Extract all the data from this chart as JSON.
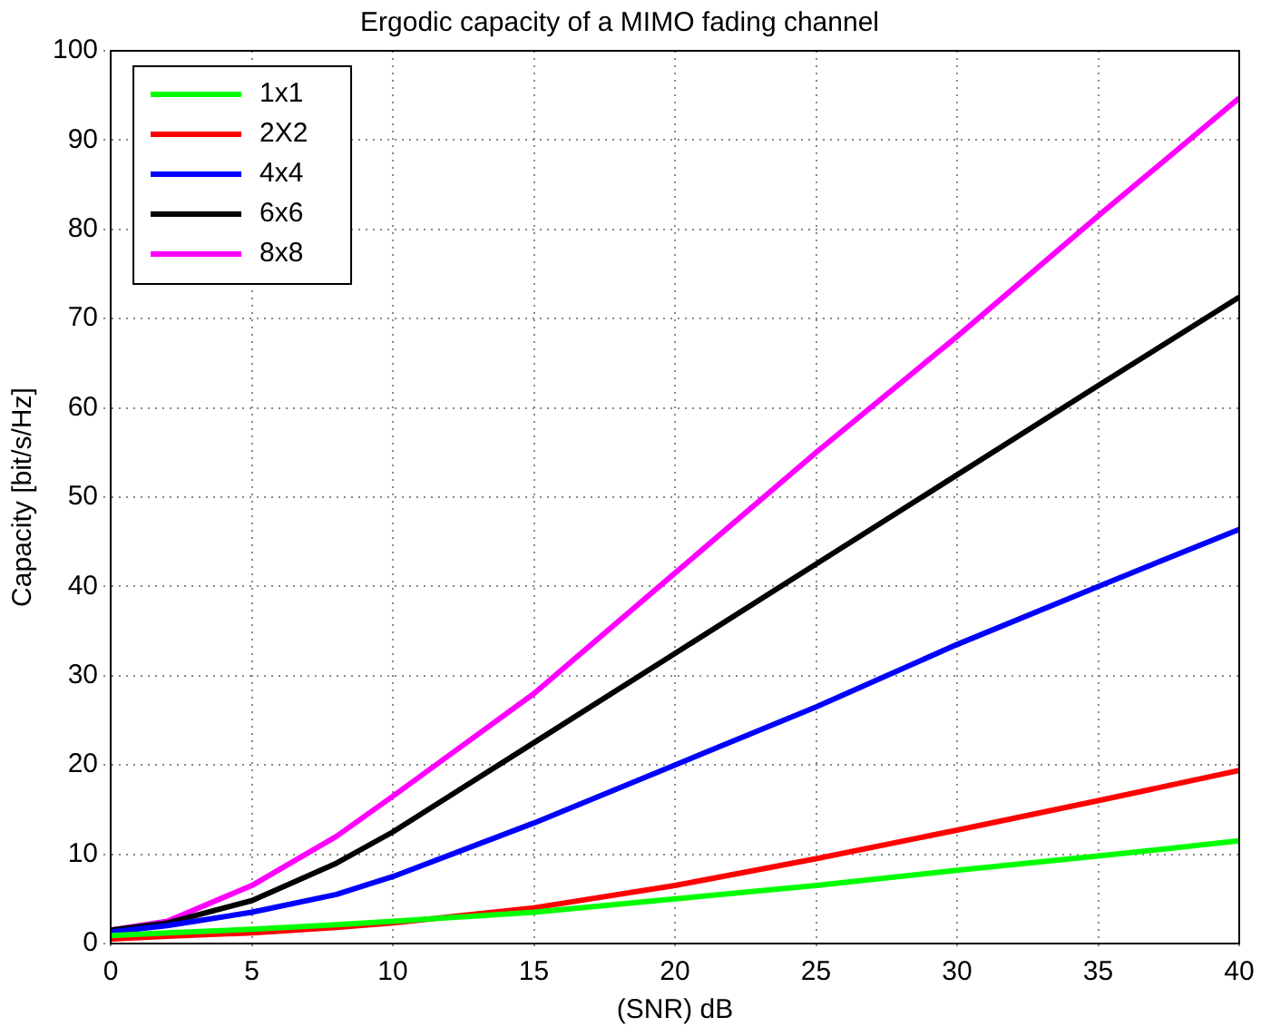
{
  "chart_data": {
    "type": "line",
    "title": "Ergodic capacity of a MIMO fading channel",
    "xlabel": "(SNR) dB",
    "ylabel": "Capacity [bit/s/Hz]",
    "x": [
      0,
      2,
      5,
      8,
      10,
      15,
      20,
      25,
      30,
      35,
      40
    ],
    "series": [
      {
        "name": "1x1",
        "color": "#00ff00",
        "values": [
          0.9,
          1.2,
          1.6,
          2.1,
          2.5,
          3.5,
          5,
          6.5,
          8.2,
          9.8,
          11.5
        ]
      },
      {
        "name": "2X2",
        "color": "#ff0000",
        "values": [
          0.5,
          0.8,
          1.2,
          1.8,
          2.3,
          4,
          6.5,
          9.5,
          12.7,
          16,
          19.4
        ]
      },
      {
        "name": "4x4",
        "color": "#0000ff",
        "values": [
          1.3,
          2,
          3.5,
          5.5,
          7.5,
          13.5,
          20,
          26.5,
          33.5,
          40,
          46.4
        ]
      },
      {
        "name": "6x6",
        "color": "#000000",
        "values": [
          1.5,
          2.3,
          4.8,
          9,
          12.5,
          22.5,
          32.5,
          42.5,
          52.5,
          62.5,
          72.4
        ]
      },
      {
        "name": "8x8",
        "color": "#ff00ff",
        "values": [
          1.5,
          2.5,
          6.5,
          12,
          16.5,
          28,
          41.5,
          55,
          68,
          81.5,
          94.7
        ]
      }
    ],
    "xlim": [
      0,
      40
    ],
    "xticks": [
      0,
      5,
      10,
      15,
      20,
      25,
      30,
      35,
      40
    ],
    "ylim": [
      0,
      100
    ],
    "yticks": [
      0,
      10,
      20,
      30,
      40,
      50,
      60,
      70,
      80,
      90,
      100
    ],
    "grid": true,
    "legend": "top left",
    "line_style": "solid",
    "marker": "none"
  }
}
